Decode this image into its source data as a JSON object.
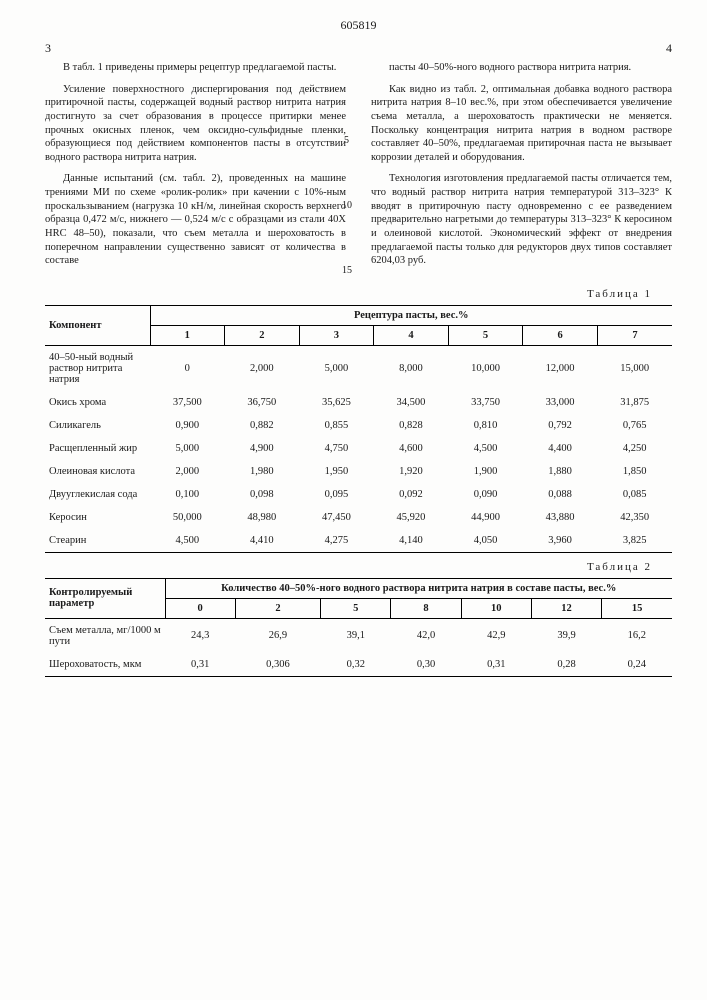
{
  "doc_number": "605819",
  "page_left": "3",
  "page_right": "4",
  "col_markers": {
    "m5": "5",
    "m10": "10",
    "m15": "15"
  },
  "left_col": {
    "p1": "В табл. 1 приведены примеры рецептур предлагаемой пасты.",
    "p2": "Усиление поверхностного диспергирования под действием притирочной пасты, содержащей водный раствор нитрита натрия достигнуто за счет образования в процессе притирки менее прочных окисных пленок, чем оксидно-сульфидные пленки, образующиеся под действием компонентов пасты в отсутствии водного раствора нитрита натрия.",
    "p3": "Данные испытаний (см. табл. 2), проведенных на машине трениями МИ по схеме «ролик-ролик» при качении с 10%-ным проскальзыванием (нагрузка 10 кН/м, линейная скорость верхнего образца 0,472 м/с, нижнего — 0,524 м/с с образцами из стали 40X HRC 48–50), показали, что съем металла и шероховатость в поперечном направлении существенно зависят от количества в составе"
  },
  "right_col": {
    "p1": "пасты 40–50%-ного водного раствора нитрита натрия.",
    "p2": "Как видно из табл. 2, оптимальная добавка водного раствора нитрита натрия 8–10 вес.%, при этом обеспечивается увеличение съема металла, а шероховатость практически не меняется. Поскольку концентрация нитрита натрия в водном растворе составляет 40–50%, предлагаемая притирочная паста не вызывает коррозии деталей и оборудования.",
    "p3": "Технология изготовления предлагаемой пасты отличается тем, что водный раствор нитрита натрия температурой 313–323° К вводят в притирочную пасту одновременно с ее разведением предварительно нагретыми до температуры 313–323° К керосином и олеиновой кислотой. Экономический эффект от внедрения предлагаемой пасты только для редукторов двух типов составляет 6204,03 руб."
  },
  "table1": {
    "title": "Таблица 1",
    "head_component": "Компонент",
    "head_recipe": "Рецептура пасты, вес.%",
    "cols": [
      "1",
      "2",
      "3",
      "4",
      "5",
      "6",
      "7"
    ],
    "rows": [
      {
        "label": "40–50-ный водный раствор нитрита натрия",
        "v": [
          "0",
          "2,000",
          "5,000",
          "8,000",
          "10,000",
          "12,000",
          "15,000"
        ]
      },
      {
        "label": "Окись хрома",
        "v": [
          "37,500",
          "36,750",
          "35,625",
          "34,500",
          "33,750",
          "33,000",
          "31,875"
        ]
      },
      {
        "label": "Силикагель",
        "v": [
          "0,900",
          "0,882",
          "0,855",
          "0,828",
          "0,810",
          "0,792",
          "0,765"
        ]
      },
      {
        "label": "Расщепленный жир",
        "v": [
          "5,000",
          "4,900",
          "4,750",
          "4,600",
          "4,500",
          "4,400",
          "4,250"
        ]
      },
      {
        "label": "Олеиновая кислота",
        "v": [
          "2,000",
          "1,980",
          "1,950",
          "1,920",
          "1,900",
          "1,880",
          "1,850"
        ]
      },
      {
        "label": "Двууглекислая сода",
        "v": [
          "0,100",
          "0,098",
          "0,095",
          "0,092",
          "0,090",
          "0,088",
          "0,085"
        ]
      },
      {
        "label": "Керосин",
        "v": [
          "50,000",
          "48,980",
          "47,450",
          "45,920",
          "44,900",
          "43,880",
          "42,350"
        ]
      },
      {
        "label": "Стеарин",
        "v": [
          "4,500",
          "4,410",
          "4,275",
          "4,140",
          "4,050",
          "3,960",
          "3,825"
        ]
      }
    ]
  },
  "table2": {
    "title": "Таблица 2",
    "head_param": "Контролируемый параметр",
    "head_qty": "Количество 40–50%-ного водного раствора нитрита натрия в составе пасты, вес.%",
    "cols": [
      "0",
      "2",
      "5",
      "8",
      "10",
      "12",
      "15"
    ],
    "rows": [
      {
        "label": "Съем металла, мг/1000 м пути",
        "v": [
          "24,3",
          "26,9",
          "39,1",
          "42,0",
          "42,9",
          "39,9",
          "16,2"
        ]
      },
      {
        "label": "Шероховатость, мкм",
        "v": [
          "0,31",
          "0,306",
          "0,32",
          "0,30",
          "0,31",
          "0,28",
          "0,24"
        ]
      }
    ]
  }
}
